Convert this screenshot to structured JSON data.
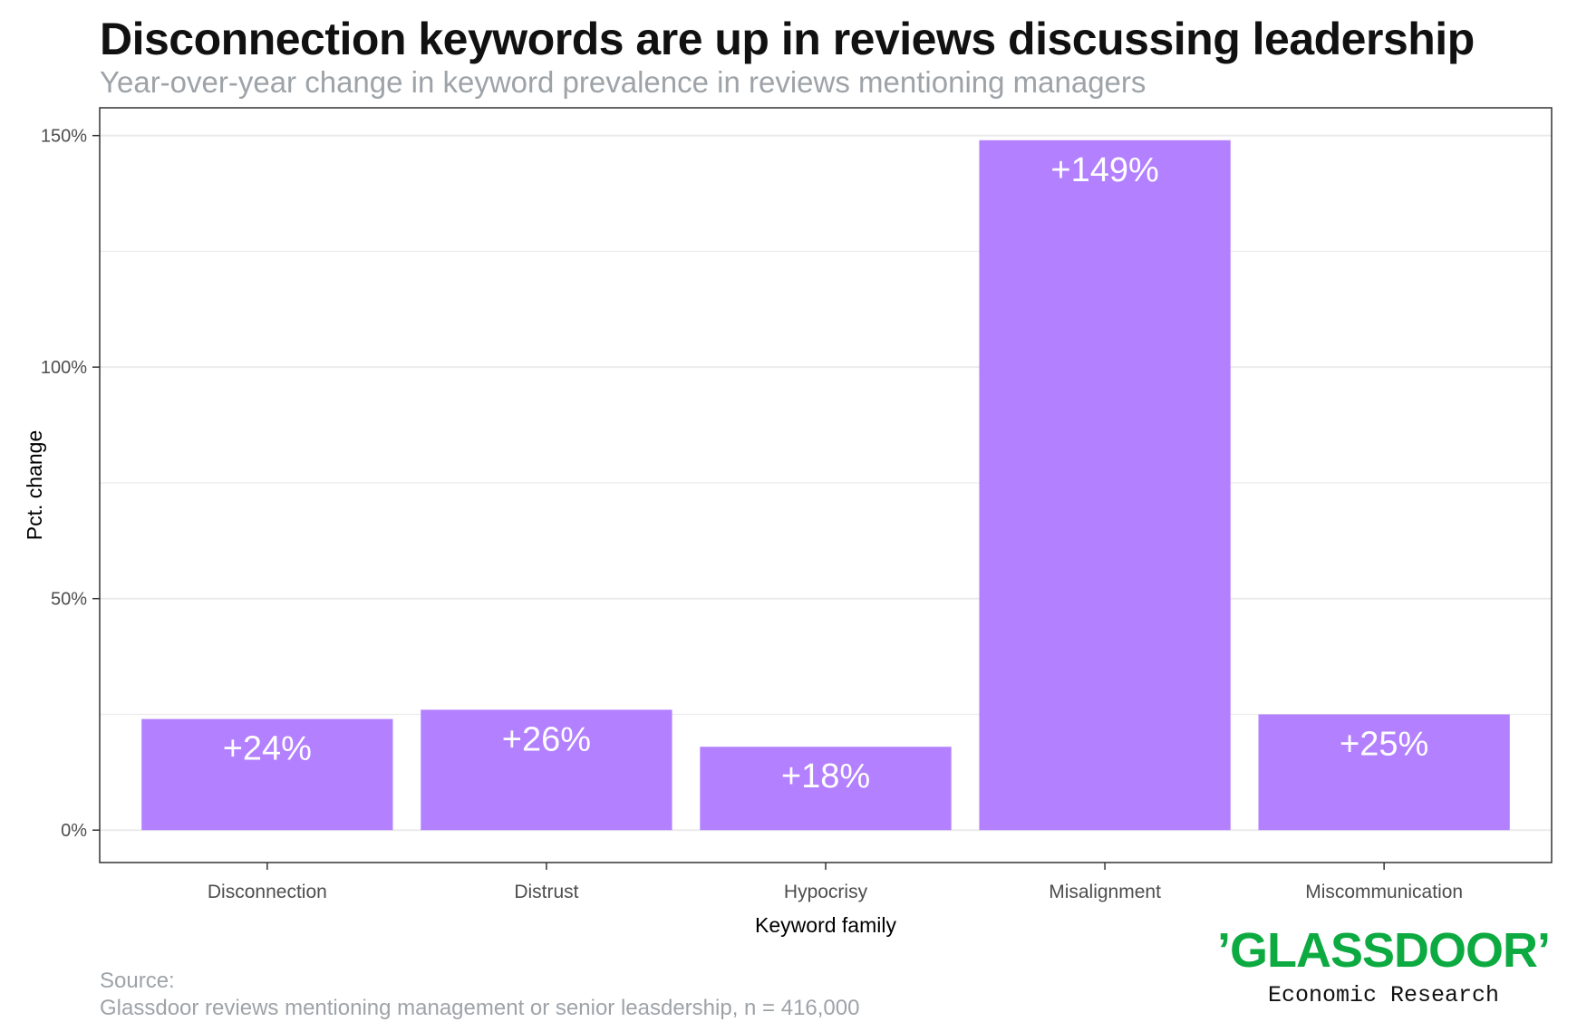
{
  "colors": {
    "bar": "#b380ff",
    "grid": "#ebebeb",
    "logo": "#0caa41",
    "muted": "#9ea3a8"
  },
  "source": {
    "label": "Source:",
    "text": "Glassdoor reviews mentioning management or senior leasdership, n = 416,000"
  },
  "logo": {
    "word": "’GLASSDOOR’",
    "sub": "Economic Research"
  },
  "chart_data": {
    "type": "bar",
    "title": "Disconnection keywords are up in reviews discussing leadership",
    "subtitle": "Year-over-year change in keyword prevalence in reviews mentioning managers",
    "xlabel": "Keyword family",
    "ylabel": "Pct. change",
    "categories": [
      "Disconnection",
      "Distrust",
      "Hypocrisy",
      "Misalignment",
      "Miscommunication"
    ],
    "values": [
      24,
      26,
      18,
      149,
      25
    ],
    "data_labels": [
      "+24%",
      "+26%",
      "+18%",
      "+149%",
      "+25%"
    ],
    "ylim": [
      -7,
      156
    ],
    "yticks": [
      0,
      50,
      100,
      150
    ],
    "ytick_labels": [
      "0%",
      "50%",
      "100%",
      "150%"
    ],
    "grid": true
  }
}
